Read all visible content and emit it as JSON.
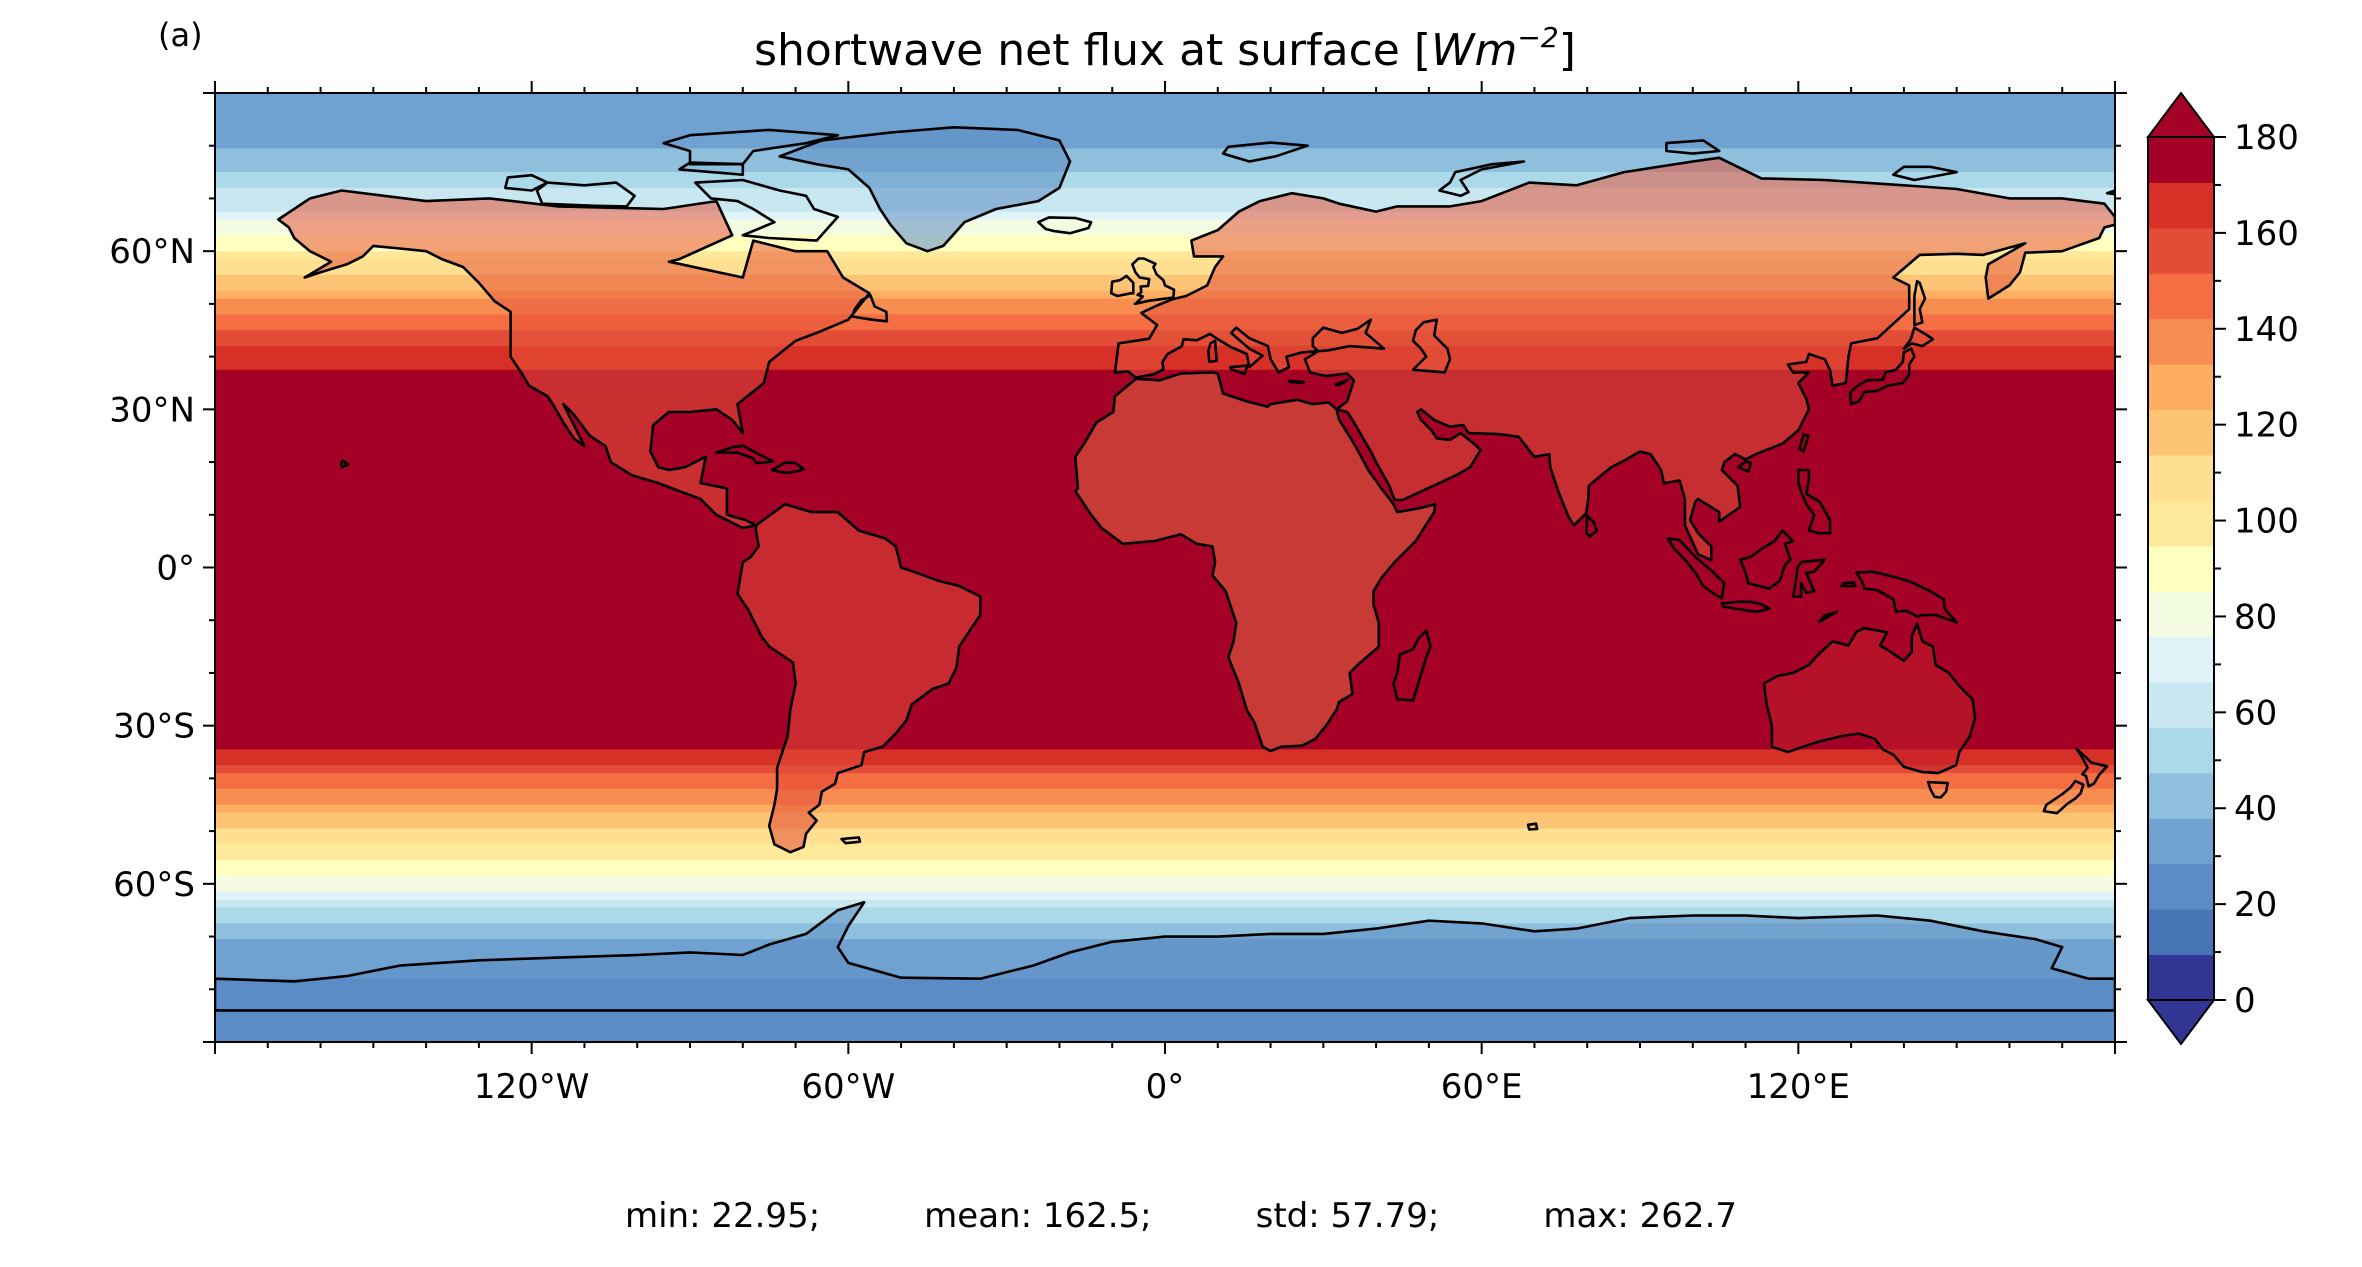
{
  "panel_label": "(a)",
  "title": {
    "prefix": "shortwave net flux at surface [",
    "unit_base": "Wm",
    "unit_exponent": "−2",
    "suffix": "]"
  },
  "map": {
    "projection": "PlateCarree",
    "lon_range": [
      -180,
      180
    ],
    "lat_range": [
      -90,
      90
    ],
    "lon_ticks": [
      {
        "value": -120,
        "label": "120°W"
      },
      {
        "value": -60,
        "label": "60°W"
      },
      {
        "value": 0,
        "label": "0°"
      },
      {
        "value": 60,
        "label": "60°E"
      },
      {
        "value": 120,
        "label": "120°E"
      }
    ],
    "lat_ticks": [
      {
        "value": 60,
        "label": "60°N"
      },
      {
        "value": 30,
        "label": "30°N"
      },
      {
        "value": 0,
        "label": "0°"
      },
      {
        "value": -30,
        "label": "30°S"
      },
      {
        "value": -60,
        "label": "60°S"
      }
    ],
    "coastlines": true,
    "colormap": "RdYlBu_r",
    "field_zonal_profile": [
      {
        "lat": 90,
        "value": 30
      },
      {
        "lat": 82,
        "value": 35
      },
      {
        "lat": 75,
        "value": 50
      },
      {
        "lat": 68,
        "value": 70
      },
      {
        "lat": 62,
        "value": 95
      },
      {
        "lat": 55,
        "value": 120
      },
      {
        "lat": 48,
        "value": 150
      },
      {
        "lat": 40,
        "value": 175
      },
      {
        "lat": 32,
        "value": 195
      },
      {
        "lat": 0,
        "value": 230
      },
      {
        "lat": -30,
        "value": 200
      },
      {
        "lat": -36,
        "value": 175
      },
      {
        "lat": -42,
        "value": 150
      },
      {
        "lat": -48,
        "value": 125
      },
      {
        "lat": -55,
        "value": 100
      },
      {
        "lat": -62,
        "value": 80
      },
      {
        "lat": -66,
        "value": 55
      },
      {
        "lat": -70,
        "value": 40
      },
      {
        "lat": -78,
        "value": 30
      },
      {
        "lat": -90,
        "value": 25
      }
    ]
  },
  "colorbar": {
    "min": 0,
    "max": 180,
    "step": 10,
    "extend": "both",
    "colors": [
      "#313695",
      "#4575b4",
      "#5b8cc5",
      "#6fa2d1",
      "#8ebfdc",
      "#abd9e9",
      "#c8e7f0",
      "#e0f3f8",
      "#f3fbe0",
      "#ffffbf",
      "#fee99b",
      "#fee090",
      "#fdc476",
      "#fdae61",
      "#f88d52",
      "#f46d43",
      "#e34c37",
      "#d73027",
      "#a50026"
    ],
    "tick_labels": [
      "0",
      "20",
      "40",
      "60",
      "80",
      "100",
      "120",
      "140",
      "160",
      "180"
    ]
  },
  "stats": {
    "min": "min: 22.95;",
    "mean": "mean: 162.5;",
    "std": "std: 57.79;",
    "max": "max: 262.7"
  }
}
